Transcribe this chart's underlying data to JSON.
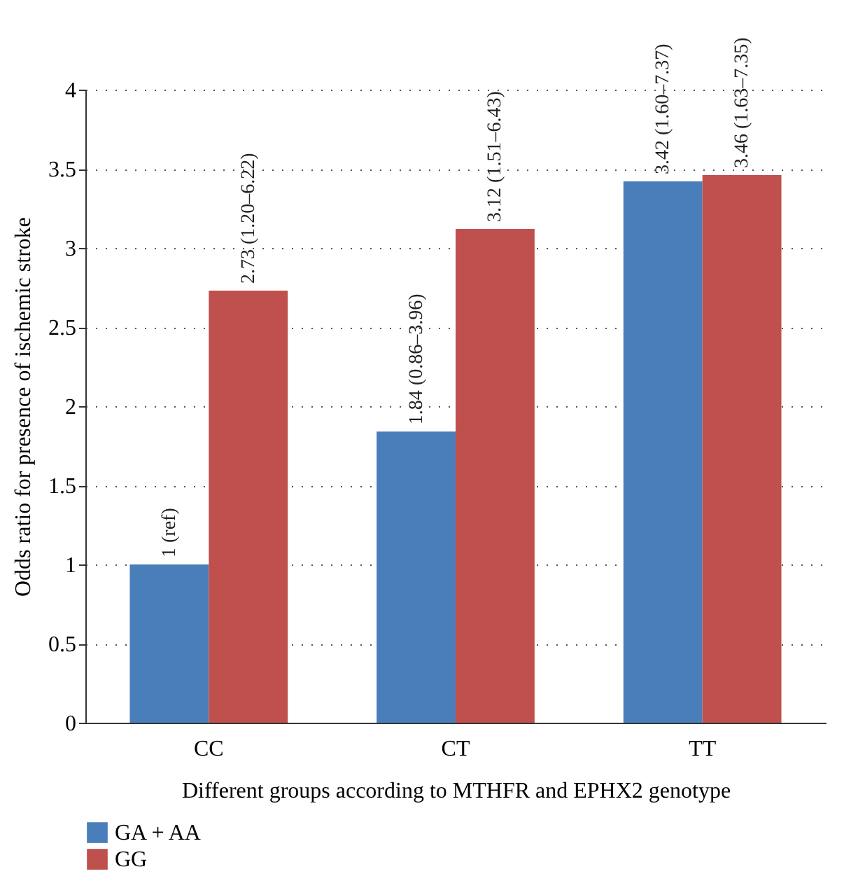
{
  "chart_data": {
    "type": "bar",
    "xlabel": "Different groups according to MTHFR and EPHX2 genotype",
    "ylabel": "Odds ratio for presence of ischemic stroke",
    "categories": [
      "CC",
      "CT",
      "TT"
    ],
    "series": [
      {
        "name": "GA + AA",
        "color": "#4a7ebb",
        "values": [
          1,
          1.84,
          3.42
        ],
        "value_labels": [
          "1 (ref)",
          "1.84 (0.86–3.96)",
          "3.42 (1.60–7.37)"
        ]
      },
      {
        "name": "GG",
        "color": "#c0504d",
        "values": [
          2.73,
          3.12,
          3.46
        ],
        "value_labels": [
          "2.73 (1.20–6.22)",
          "3.12 (1.51–6.43)",
          "3.46 (1.63–7.35)"
        ]
      }
    ],
    "ylim": [
      0,
      4
    ],
    "yticks": [
      0,
      0.5,
      1,
      1.5,
      2,
      2.5,
      3,
      3.5,
      4
    ],
    "grid": "y",
    "legend": "bottom left"
  }
}
